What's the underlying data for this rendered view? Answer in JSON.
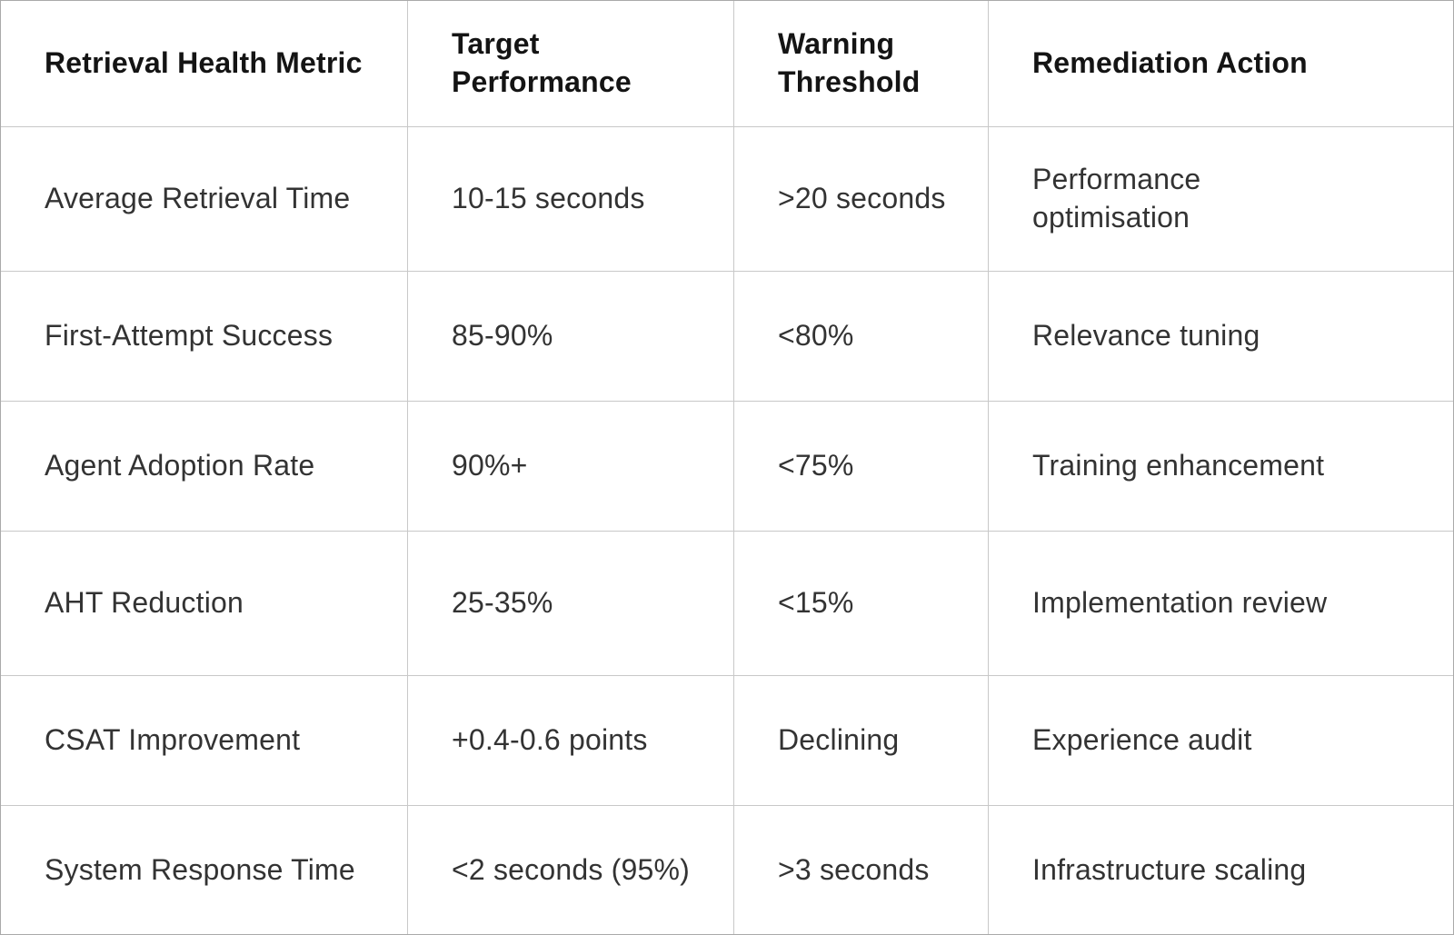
{
  "colors": {
    "bg": "#ffffff",
    "text-body": "#333333",
    "text-header": "#141414",
    "border-inner": "#c8c8c8",
    "border-outer": "#aaaaaa"
  },
  "table": {
    "columns": [
      {
        "label": "Retrieval Health Metric"
      },
      {
        "label": "Target Performance"
      },
      {
        "label": "Warning Threshold"
      },
      {
        "label": "Remediation Action"
      }
    ],
    "rows": [
      {
        "metric": "Average Retrieval Time",
        "target": "10-15 seconds",
        "warning": ">20 seconds",
        "remediation": "Performance optimisation"
      },
      {
        "metric": "First-Attempt Success",
        "target": "85-90%",
        "warning": "<80%",
        "remediation": "Relevance tuning"
      },
      {
        "metric": "Agent Adoption Rate",
        "target": "90%+",
        "warning": "<75%",
        "remediation": "Training enhancement"
      },
      {
        "metric": "AHT Reduction",
        "target": "25-35%",
        "warning": "<15%",
        "remediation": "Implementation review"
      },
      {
        "metric": "CSAT Improvement",
        "target": "+0.4-0.6 points",
        "warning": "Declining",
        "remediation": "Experience audit"
      },
      {
        "metric": "System Response Time",
        "target": "<2 seconds (95%)",
        "warning": ">3 seconds",
        "remediation": "Infrastructure scaling"
      }
    ]
  }
}
